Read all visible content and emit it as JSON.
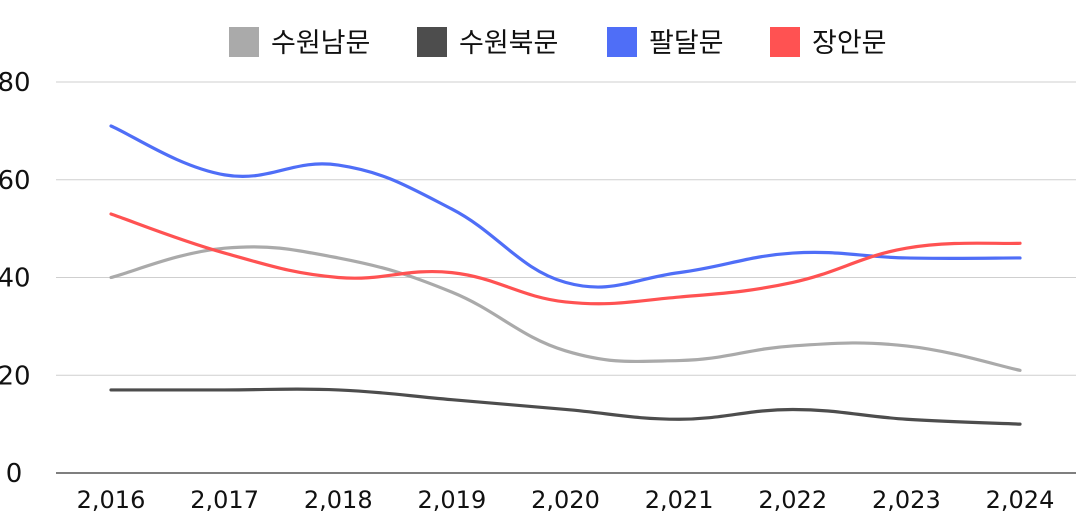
{
  "chart_data": {
    "type": "line",
    "title": "",
    "xlabel": "",
    "ylabel": "",
    "categories": [
      "2,016",
      "2,017",
      "2,018",
      "2,019",
      "2,020",
      "2,021",
      "2,022",
      "2,023",
      "2,024"
    ],
    "ylim": [
      0,
      80
    ],
    "yticks": [
      "0",
      "20",
      "40",
      "60",
      "80"
    ],
    "grid": true,
    "legend_position": "top-center",
    "series": [
      {
        "name": "수원남문",
        "color": "#aaaaaa",
        "values": [
          40,
          46,
          44,
          37,
          25,
          23,
          26,
          26,
          21
        ]
      },
      {
        "name": "수원북문",
        "color": "#4d4d4d",
        "values": [
          17,
          17,
          17,
          15,
          13,
          11,
          13,
          11,
          10
        ]
      },
      {
        "name": "팔달문",
        "color": "#4f6ef7",
        "values": [
          71,
          61,
          63,
          54,
          39,
          41,
          45,
          44,
          44
        ]
      },
      {
        "name": "장안문",
        "color": "#ff5252",
        "values": [
          53,
          45,
          40,
          41,
          35,
          36,
          39,
          46,
          47
        ]
      }
    ]
  }
}
